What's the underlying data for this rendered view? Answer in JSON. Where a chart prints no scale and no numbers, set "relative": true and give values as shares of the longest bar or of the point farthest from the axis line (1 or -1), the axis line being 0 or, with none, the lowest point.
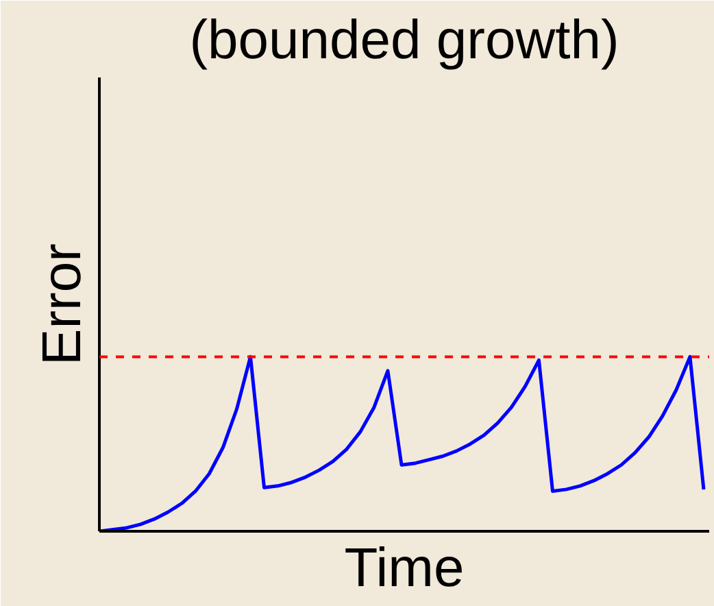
{
  "chart_data": {
    "type": "line",
    "title": "(bounded growth)",
    "xlabel": "Time",
    "ylabel": "Error",
    "relative": true,
    "marker": "none",
    "line_style": "solid",
    "categories": [
      null,
      null,
      null,
      null,
      null,
      null,
      null,
      null,
      null,
      null,
      null,
      null,
      null,
      null,
      null,
      null,
      null,
      null,
      null,
      null,
      null,
      null,
      null,
      null,
      null,
      null,
      null,
      null,
      null,
      null,
      null,
      null,
      null,
      null,
      null,
      null,
      null,
      null,
      null,
      null,
      null,
      null,
      null,
      null,
      null
    ],
    "series": [
      {
        "color": "#0000ff",
        "values": [
          0,
          0.01,
          0.02,
          0.04,
          0.07,
          0.11,
          0.16,
          0.23,
          0.33,
          0.48,
          0.7,
          1.0,
          0.25,
          0.26,
          0.28,
          0.31,
          0.35,
          0.4,
          0.47,
          0.57,
          0.71,
          0.92,
          0.38,
          0.39,
          0.41,
          0.43,
          0.46,
          0.5,
          0.55,
          0.62,
          0.71,
          0.83,
          0.98,
          0.23,
          0.24,
          0.26,
          0.29,
          0.33,
          0.38,
          0.45,
          0.54,
          0.66,
          0.81,
          1.0,
          0.24
        ]
      }
    ],
    "ref_lines": [
      {
        "axis": "y",
        "value": 1.0,
        "color": "#ff0000",
        "line_style": "dashed"
      }
    ]
  }
}
